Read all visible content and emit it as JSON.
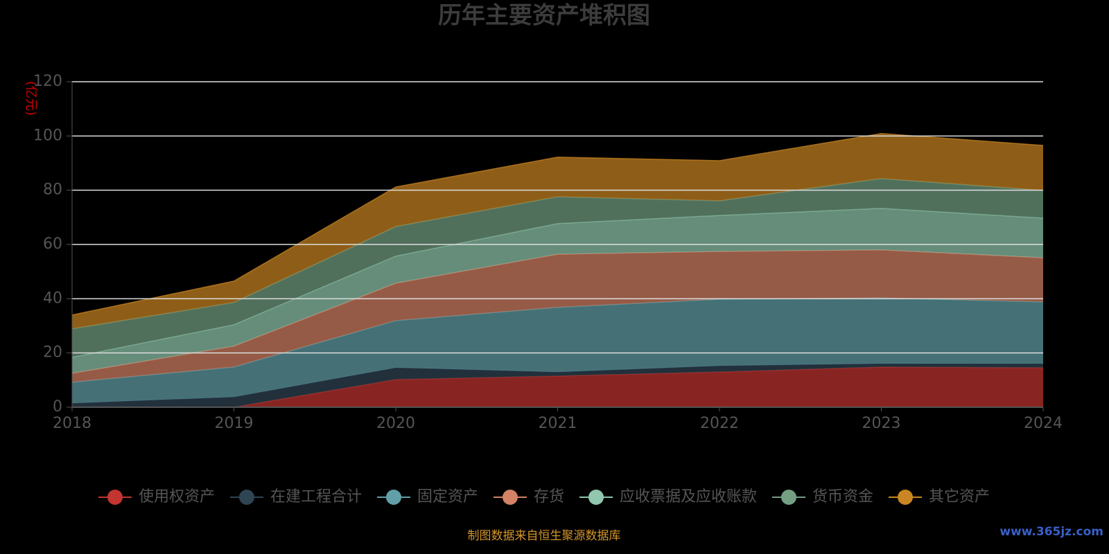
{
  "chart_data": {
    "type": "stacked-area",
    "title": "历年主要资产堆积图",
    "y_unit": "(亿元)",
    "source": "制图数据来自恒生聚源数据库",
    "watermark": "www.365jz.com",
    "categories": [
      "2018",
      "2019",
      "2020",
      "2021",
      "2022",
      "2023",
      "2024"
    ],
    "ylim": [
      0,
      120
    ],
    "yticks": [
      0,
      20,
      40,
      60,
      80,
      100,
      120
    ],
    "grid": true,
    "series": [
      {
        "name": "使用权资产",
        "color": "#c23531",
        "values": [
          0,
          0,
          10.2,
          11.5,
          13,
          14.8,
          14.6
        ]
      },
      {
        "name": "在建工程合计",
        "color": "#2f4554",
        "values": [
          1.5,
          3.8,
          4.4,
          1.5,
          2.3,
          1.3,
          1.5
        ]
      },
      {
        "name": "固定资产",
        "color": "#61a0a8",
        "values": [
          7.7,
          11,
          17.3,
          23.8,
          24.5,
          24.2,
          22.7
        ]
      },
      {
        "name": "存货",
        "color": "#d48265",
        "values": [
          3.3,
          7.7,
          13.8,
          19.6,
          17.6,
          17.7,
          16.3
        ]
      },
      {
        "name": "应收票据及应收账款",
        "color": "#91c7ae",
        "values": [
          5.9,
          7.9,
          10,
          11.3,
          13.3,
          15.3,
          14.6
        ]
      },
      {
        "name": "货币资金",
        "color": "#749f83",
        "values": [
          10.5,
          8.2,
          10.9,
          9.9,
          5.4,
          11,
          10.2
        ]
      },
      {
        "name": "其它资产",
        "color": "#ca8622",
        "values": [
          5.1,
          7.9,
          14.6,
          14.6,
          14.8,
          16.6,
          16.6
        ]
      }
    ]
  }
}
